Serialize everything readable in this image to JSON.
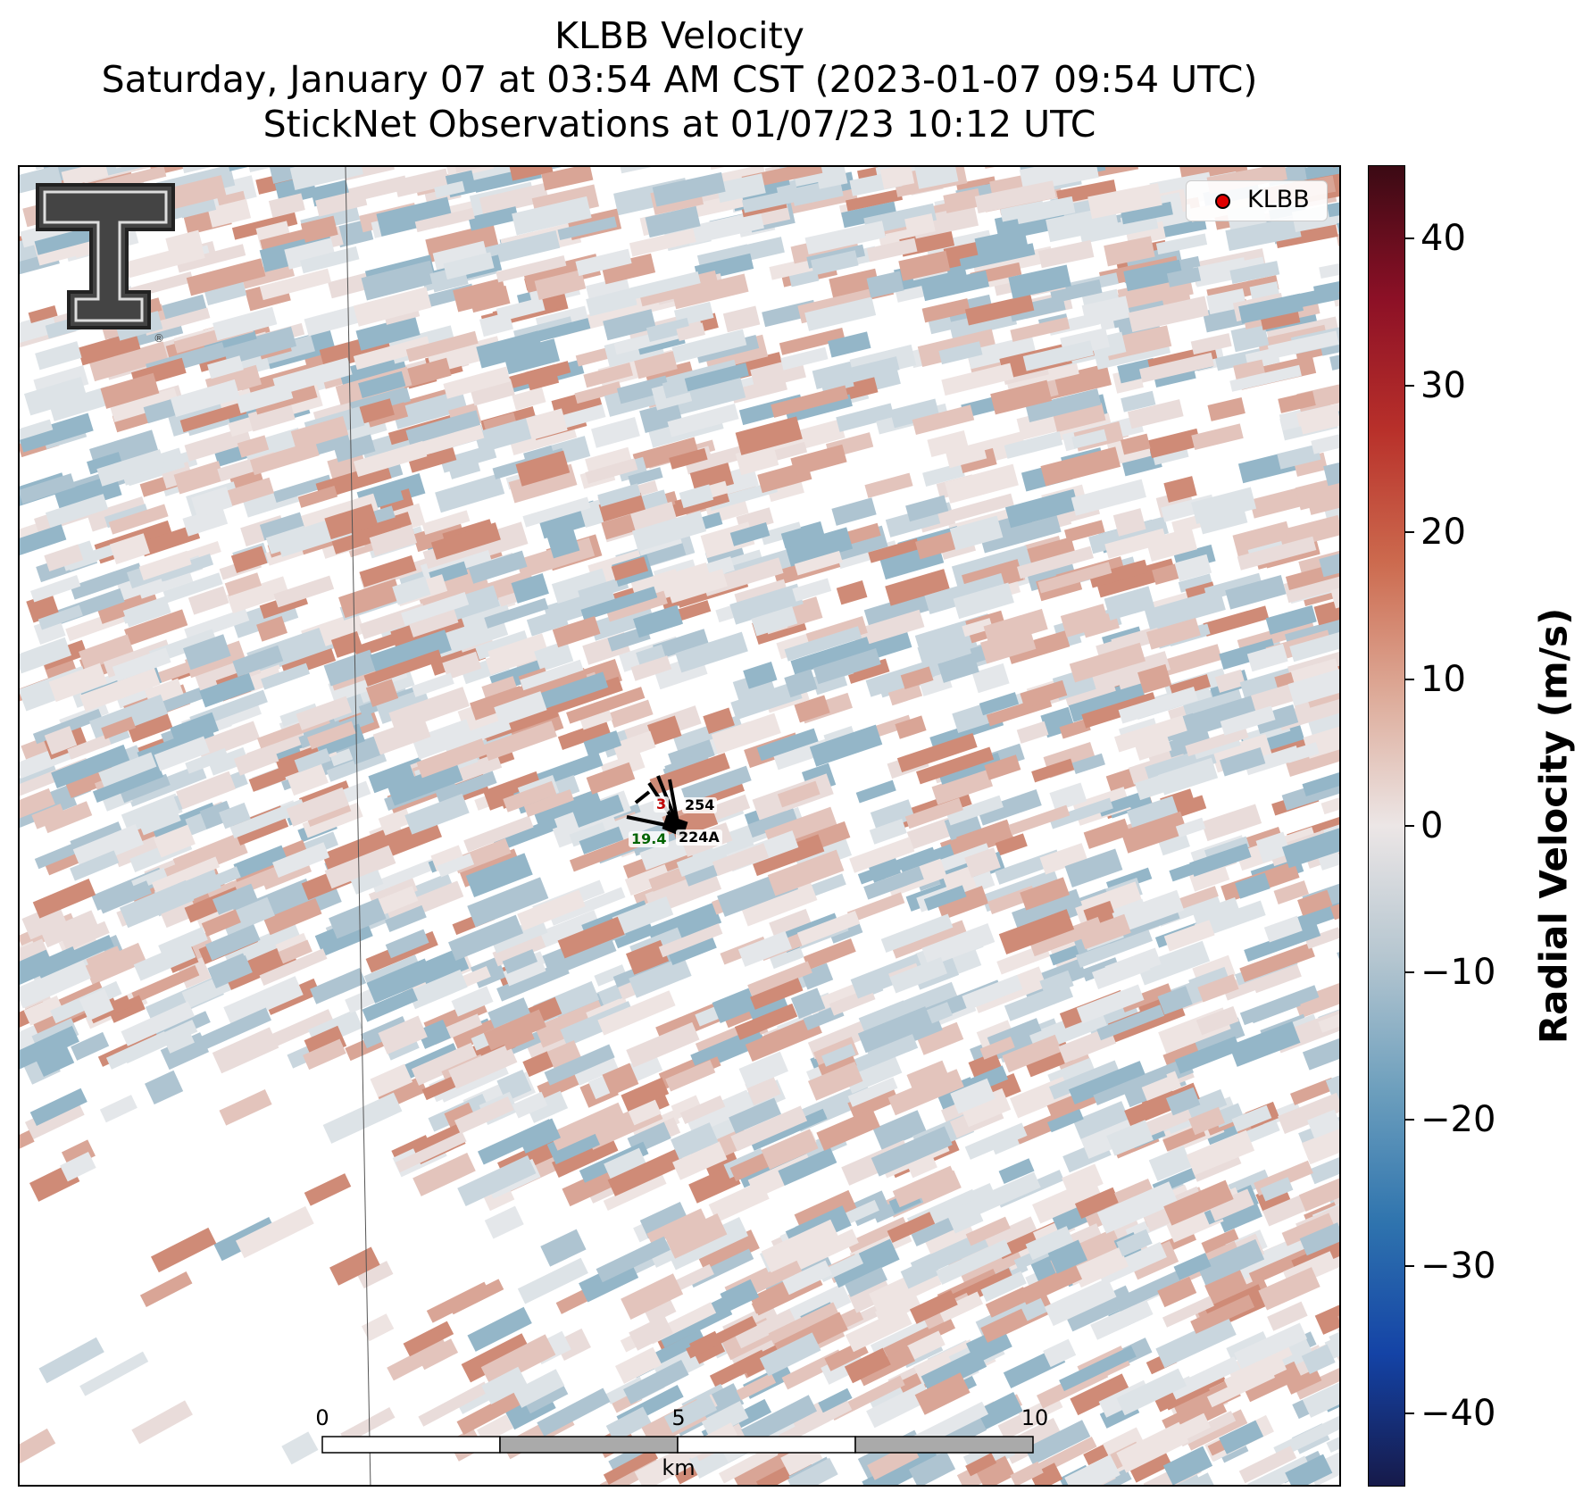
{
  "title": {
    "line1": "KLBB Velocity",
    "line2": "Saturday, January 07 at 03:54 AM CST (2023-01-07 09:54 UTC)",
    "line3": "StickNet Observations at 01/07/23 10:12 UTC"
  },
  "legend": {
    "label": "KLBB",
    "marker_color": "#e00000"
  },
  "logo": {
    "name": "Texas Tech Double T",
    "mark": "®"
  },
  "stations": [
    {
      "id": "254",
      "value_partial": "3",
      "value_color": "#c00000"
    },
    {
      "id": "224A",
      "value": "19.4",
      "value_color": "#006400"
    }
  ],
  "scale_bar": {
    "unit": "km",
    "ticks": [
      "0",
      "5",
      "10"
    ]
  },
  "colorbar": {
    "label": "Radial Velocity (m/s)",
    "range": [
      -45,
      45
    ],
    "ticks": [
      "40",
      "30",
      "20",
      "10",
      "0",
      "−10",
      "−20",
      "−30",
      "−40"
    ],
    "colors": {
      "max": "#3b0a14",
      "positive": "#cc6a4e",
      "zero": "#ece6e6",
      "negative": "#6d9fbd",
      "min": "#161a4a"
    }
  }
}
